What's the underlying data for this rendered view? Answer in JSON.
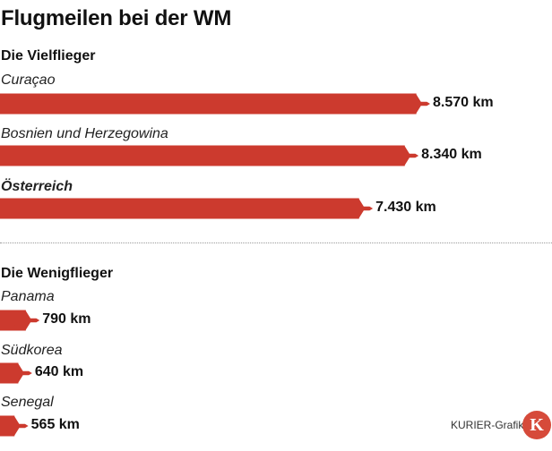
{
  "title": "Flugmeilen bei der WM",
  "colors": {
    "bar": "#cc3a2e",
    "text": "#111111",
    "logo": "#d64a3a"
  },
  "chart_data": {
    "type": "bar",
    "orientation": "horizontal",
    "unit": "km",
    "groups": [
      {
        "title": "Die Vielflieger",
        "categories": [
          "Curaçao",
          "Bosnien und Herzegowina",
          "Österreich"
        ],
        "values": [
          8570,
          8340,
          7430
        ],
        "value_labels": [
          "8.570 km",
          "8.340 km",
          "7.430 km"
        ],
        "highlight": "Österreich"
      },
      {
        "title": "Die Wenigflieger",
        "categories": [
          "Panama",
          "Südkorea",
          "Senegal"
        ],
        "values": [
          790,
          640,
          565
        ],
        "value_labels": [
          "790 km",
          "640 km",
          "565 km"
        ]
      }
    ],
    "icon": "airplane-icon"
  },
  "footer": {
    "credit": "KURIER-Grafik",
    "logo_letter": "K"
  }
}
